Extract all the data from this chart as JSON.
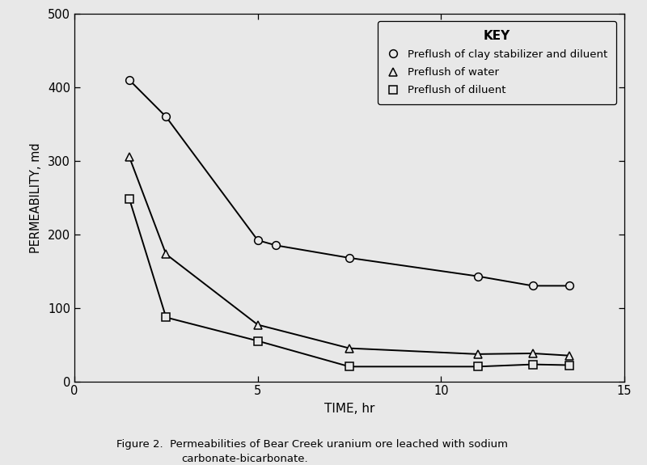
{
  "series": [
    {
      "label": "Preflush of clay stabilizer and diluent",
      "marker": "o",
      "x": [
        1.5,
        2.5,
        5.0,
        5.5,
        7.5,
        11.0,
        12.5,
        13.5
      ],
      "y": [
        410,
        360,
        192,
        185,
        168,
        143,
        130,
        130
      ]
    },
    {
      "label": "Preflush of water",
      "marker": "^",
      "x": [
        1.5,
        2.5,
        5.0,
        7.5,
        11.0,
        12.5,
        13.5
      ],
      "y": [
        305,
        173,
        77,
        45,
        37,
        38,
        35
      ]
    },
    {
      "label": "Preflush of diluent",
      "marker": "s",
      "x": [
        1.5,
        2.5,
        5.0,
        7.5,
        11.0,
        12.5,
        13.5
      ],
      "y": [
        248,
        87,
        55,
        20,
        20,
        23,
        22
      ]
    }
  ],
  "xlim": [
    0,
    15
  ],
  "ylim": [
    0,
    500
  ],
  "xlabel": "TIME, hr",
  "ylabel": "PERMEABILITY, md",
  "xticks": [
    0,
    5,
    10,
    15
  ],
  "yticks": [
    0,
    100,
    200,
    300,
    400,
    500
  ],
  "key_title": "KEY",
  "legend_labels": [
    "Preflush of clay stabilizer and diluent",
    "Preflush of water",
    "Preflush of diluent"
  ],
  "legend_markers": [
    "o",
    "^",
    "s"
  ],
  "figure_caption_line1": "Figure 2.  Permeabilities of Bear Creek uranium ore leached with sodium",
  "figure_caption_line2": "carbonate-bicarbonate.",
  "line_color": "#000000",
  "background_color": "#e8e8e8",
  "marker_size": 7,
  "line_width": 1.4
}
